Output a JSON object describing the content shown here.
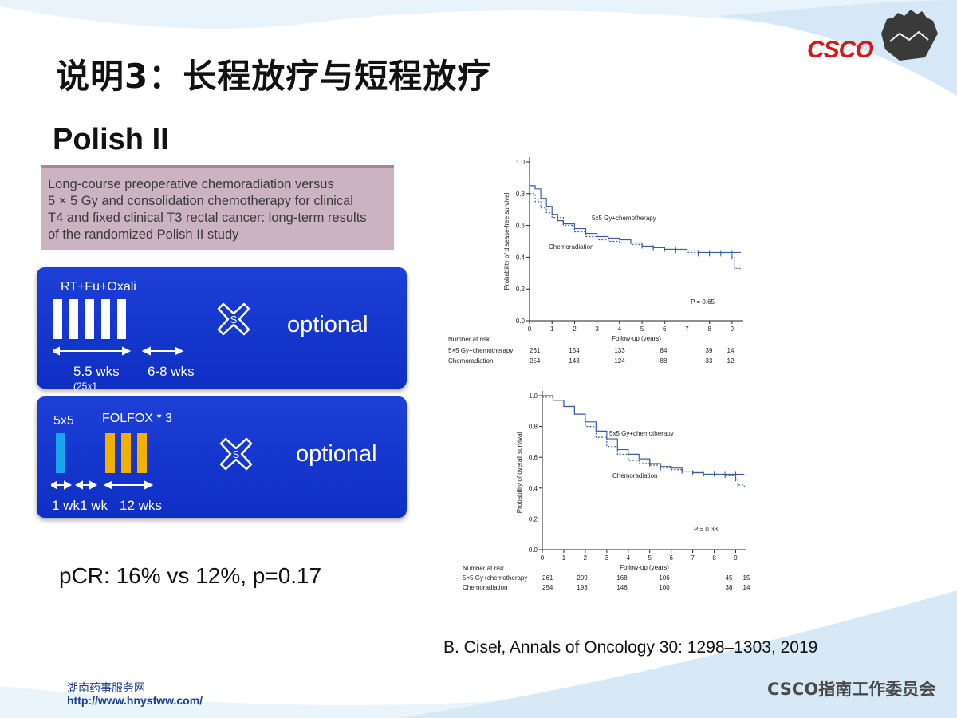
{
  "slide": {
    "title": "说明3：长程放疗与短程放疗",
    "study": "Polish II",
    "paper_title_lines": [
      "Long-course preoperative chemoradiation versus",
      "5 × 5 Gy and consolidation chemotherapy for clinical",
      "T4 and fixed clinical T3 rectal cancer: long-term results",
      "of the randomized Polish II study"
    ],
    "pcr": "pCR: 16% vs 12%, p=0.17",
    "citation": "B. Ciseł, Annals of Oncology 30: 1298–1303, 2019"
  },
  "arms": {
    "long": {
      "label": "RT+Fu+Oxali",
      "dur1": "5.5 wks",
      "dur1_sub": "(25x1",
      "dur2": "6-8 wks",
      "optional": "optional",
      "surgery_icon": "S",
      "bar_color": "#ffffff"
    },
    "short": {
      "label_rt": "5x5",
      "label_chemo": "FOLFOX * 3",
      "dur1": "1 wk",
      "dur2": "1 wk",
      "dur3": "12 wks",
      "optional": "optional",
      "surgery_icon": "S",
      "rt_color": "#1aa6ee",
      "chemo_color": "#f2b000"
    }
  },
  "logo": {
    "text": "CSCO"
  },
  "footer": {
    "org_cn": "湖南药事服务网",
    "url": "http://www.hnysfww.com/",
    "brand": "CSCO指南工作委员会"
  },
  "chart_data": [
    {
      "type": "line",
      "title": "",
      "xlabel": "Follow-up (years)",
      "ylabel": "Probability of disease-free survival",
      "xlim": [
        0,
        9.5
      ],
      "ylim": [
        0,
        1.0
      ],
      "xticks": [
        0,
        1,
        2,
        3,
        4,
        5,
        6,
        7,
        8,
        9
      ],
      "yticks": [
        "0.0",
        "0.2",
        "0.4",
        "0.6",
        "0.8",
        "1.0"
      ],
      "pvalue": "P = 0.65",
      "series": [
        {
          "name": "5x5 Gy+chemotherapy",
          "style": "solid",
          "color": "#3a5fa0",
          "x": [
            0,
            0.25,
            0.5,
            0.75,
            1,
            1.25,
            1.5,
            2,
            2.5,
            3,
            3.5,
            4,
            4.5,
            5,
            5.5,
            6,
            6.5,
            7,
            7.5,
            8,
            8.5,
            9,
            9.4
          ],
          "y": [
            0.85,
            0.83,
            0.77,
            0.72,
            0.67,
            0.63,
            0.61,
            0.58,
            0.55,
            0.53,
            0.52,
            0.51,
            0.49,
            0.47,
            0.46,
            0.45,
            0.45,
            0.44,
            0.43,
            0.43,
            0.43,
            0.43,
            0.43
          ]
        },
        {
          "name": "Chemoradiation",
          "style": "dashed",
          "color": "#3a5fa0",
          "x": [
            0,
            0.25,
            0.5,
            0.75,
            1,
            1.5,
            2,
            2.5,
            3,
            3.5,
            4,
            4.5,
            5,
            5.5,
            6,
            6.5,
            7,
            7.5,
            8,
            8.5,
            9,
            9.1,
            9.4
          ],
          "y": [
            0.8,
            0.75,
            0.71,
            0.68,
            0.65,
            0.6,
            0.56,
            0.53,
            0.51,
            0.5,
            0.49,
            0.48,
            0.47,
            0.46,
            0.45,
            0.44,
            0.43,
            0.42,
            0.42,
            0.42,
            0.4,
            0.33,
            0.32
          ]
        }
      ],
      "risk_table": {
        "header": "Number at risk",
        "times": [
          0,
          2,
          4,
          6,
          8,
          9
        ],
        "rows": [
          {
            "label": "5×5 Gy+chemotherapy",
            "values": [
              "261",
              "154",
              "133",
              "84",
              "39",
              "14"
            ]
          },
          {
            "label": "Chemoradiation",
            "values": [
              "254",
              "143",
              "124",
              "88",
              "33",
              "12"
            ]
          }
        ]
      }
    },
    {
      "type": "line",
      "title": "",
      "xlabel": "Follow-up (years)",
      "ylabel": "Probability of overall survival",
      "xlim": [
        0,
        9.5
      ],
      "ylim": [
        0,
        1.0
      ],
      "xticks": [
        0,
        1,
        2,
        3,
        4,
        5,
        6,
        7,
        8,
        9
      ],
      "yticks": [
        "0.0",
        "0.2",
        "0.4",
        "0.6",
        "0.8",
        "1.0"
      ],
      "pvalue": "P = 0.38",
      "series": [
        {
          "name": "5x5 Gy+chemotherapy",
          "style": "solid",
          "color": "#3a5fa0",
          "x": [
            0,
            0.5,
            1,
            1.5,
            2,
            2.5,
            3,
            3.5,
            4,
            4.5,
            5,
            5.5,
            6,
            6.5,
            7,
            7.5,
            8,
            8.5,
            9,
            9.4
          ],
          "y": [
            1.0,
            0.97,
            0.93,
            0.88,
            0.83,
            0.77,
            0.72,
            0.65,
            0.62,
            0.59,
            0.56,
            0.54,
            0.53,
            0.51,
            0.5,
            0.49,
            0.49,
            0.49,
            0.49,
            0.49
          ]
        },
        {
          "name": "Chemoradiation",
          "style": "dashed",
          "color": "#3a5fa0",
          "x": [
            0,
            0.5,
            1,
            1.5,
            2,
            2.5,
            3,
            3.5,
            4,
            4.5,
            5,
            5.5,
            6,
            6.5,
            7,
            7.5,
            8,
            8.5,
            9,
            9.1,
            9.4
          ],
          "y": [
            0.99,
            0.97,
            0.93,
            0.88,
            0.8,
            0.73,
            0.67,
            0.62,
            0.58,
            0.56,
            0.55,
            0.53,
            0.52,
            0.51,
            0.5,
            0.49,
            0.49,
            0.48,
            0.46,
            0.42,
            0.4
          ]
        }
      ],
      "annotations": [
        "5×5 Gy+chemotherapy",
        "Chemoradiation"
      ],
      "risk_table": {
        "header": "Number at risk",
        "times": [
          0,
          2,
          3,
          5,
          8,
          9
        ],
        "rows": [
          {
            "label": "5×5 Gy+chemotherapy",
            "values": [
              "261",
              "209",
              "168",
              "106",
              "45",
              "15"
            ]
          },
          {
            "label": "Chemoradiation",
            "values": [
              "254",
              "193",
              "146",
              "100",
              "38",
              "14"
            ]
          }
        ]
      }
    }
  ]
}
